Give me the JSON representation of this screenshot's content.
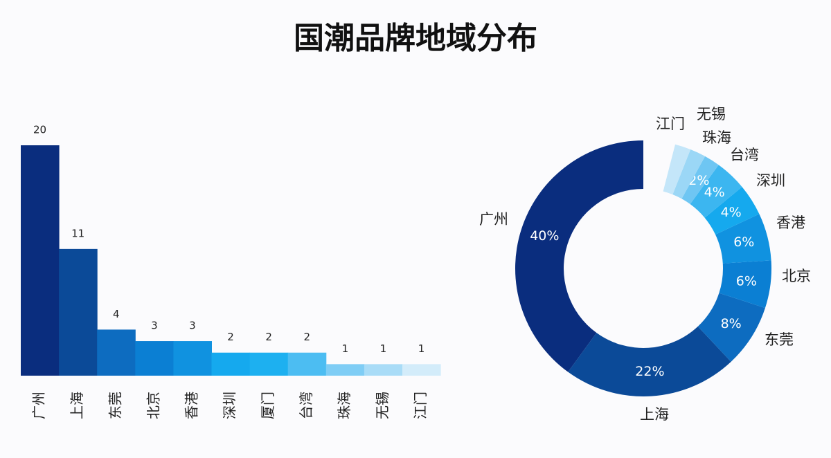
{
  "title": "国潮品牌地域分布",
  "chart_data": [
    {
      "type": "bar",
      "categories": [
        "广州",
        "上海",
        "东莞",
        "北京",
        "香港",
        "深圳",
        "厦门",
        "台湾",
        "珠海",
        "无锡",
        "江门"
      ],
      "values": [
        20,
        11,
        4,
        3,
        3,
        2,
        2,
        2,
        1,
        1,
        1
      ],
      "colors": [
        "#0a2d7e",
        "#0b4a98",
        "#0d6cc0",
        "#0b7fd3",
        "#1092e0",
        "#15a9ee",
        "#1db0f0",
        "#4cbdf2",
        "#7fcdf5",
        "#a9dcf7",
        "#d3ecfa"
      ]
    },
    {
      "type": "donut",
      "categories": [
        "广州",
        "上海",
        "东莞",
        "北京",
        "香港",
        "深圳",
        "台湾",
        "珠海",
        "无锡",
        "江门"
      ],
      "values": [
        40,
        22,
        8,
        6,
        6,
        4,
        4,
        2,
        2,
        2
      ],
      "value_labels": [
        "40%",
        "22%",
        "8%",
        "6%",
        "6%",
        "4%",
        "4%",
        "2%",
        null,
        null
      ],
      "colors": [
        "#0a2d7e",
        "#0b4a98",
        "#0d6cc0",
        "#0b7fd3",
        "#1092e0",
        "#15a9ee",
        "#3cb6f0",
        "#6ec6f3",
        "#9bd7f6",
        "#c4e6f9"
      ]
    }
  ]
}
